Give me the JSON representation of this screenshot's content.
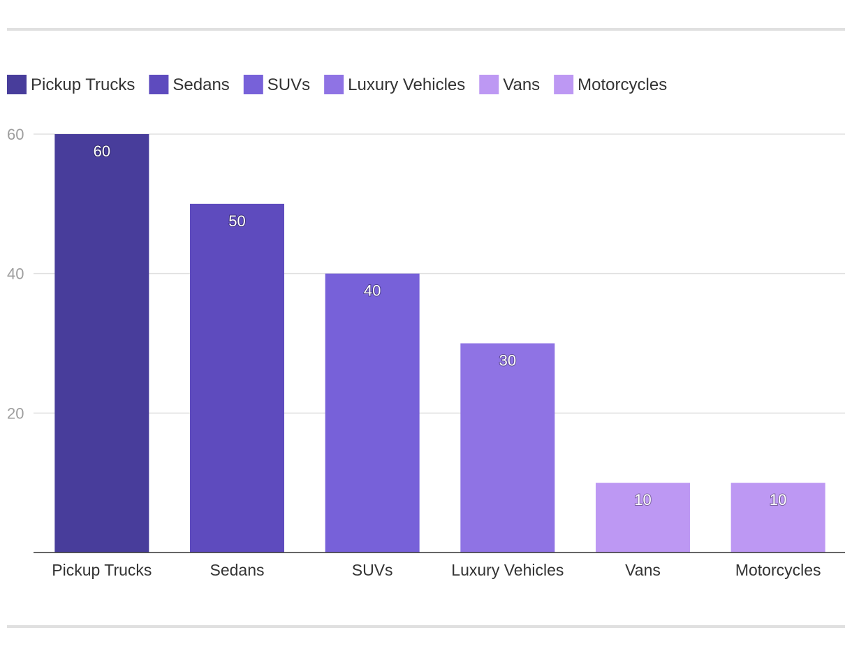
{
  "chart_data": {
    "type": "bar",
    "title": "",
    "xlabel": "",
    "ylabel": "",
    "categories": [
      "Pickup Trucks",
      "Sedans",
      "SUVs",
      "Luxury Vehicles",
      "Vans",
      "Motorcycles"
    ],
    "values": [
      60,
      50,
      40,
      30,
      10,
      10
    ],
    "colors": [
      "#483d9b",
      "#5e4bbe",
      "#7761d9",
      "#8f73e4",
      "#bd98f3",
      "#bd98f3"
    ],
    "legend_colors": [
      "#483d9b",
      "#5e4bbe",
      "#7761d9",
      "#8f73e4",
      "#bd98f3",
      "#bd98f3"
    ],
    "legend": [
      "Pickup Trucks",
      "Sedans",
      "SUVs",
      "Luxury Vehicles",
      "Vans",
      "Motorcycles"
    ],
    "legend_position": "top-left",
    "ylim": [
      0,
      60
    ],
    "yticks": [
      20,
      40,
      60
    ],
    "grid": true,
    "data_labels": true
  }
}
